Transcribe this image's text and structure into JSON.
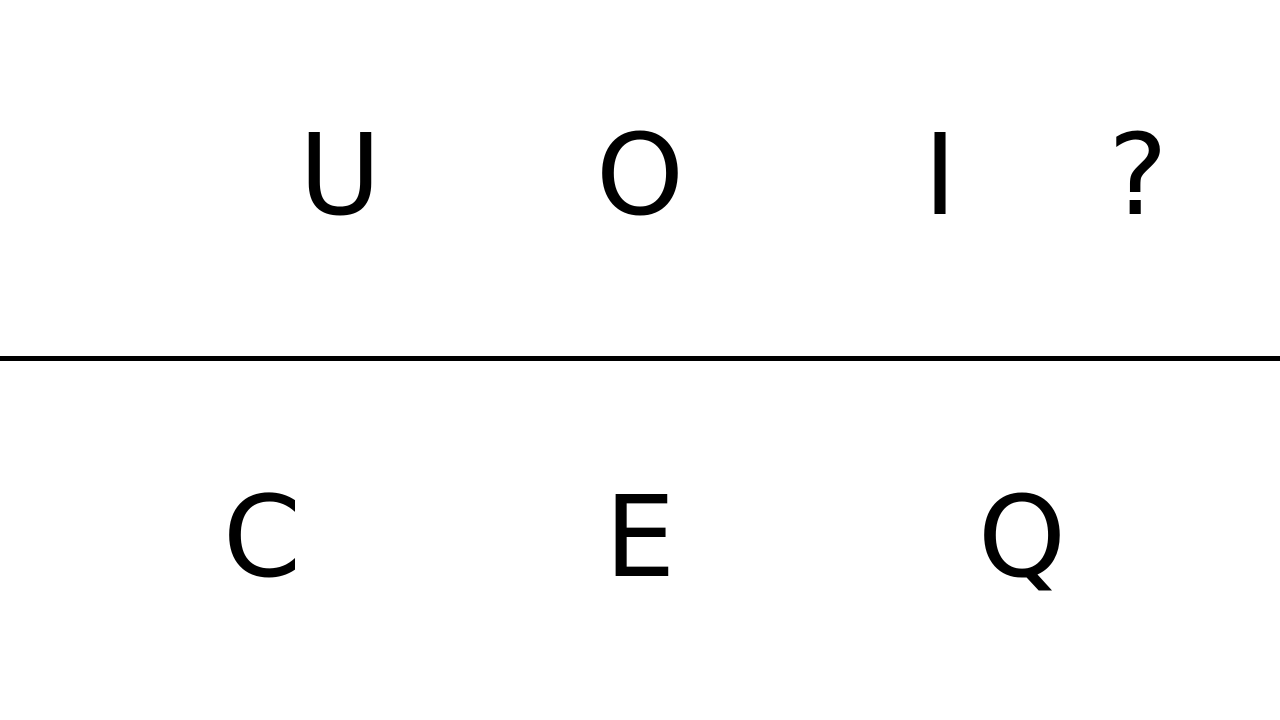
{
  "top_row": {
    "letters": [
      "U",
      "O",
      "I"
    ],
    "unknown": "?"
  },
  "bottom_row": {
    "letters": [
      "C",
      "E",
      "Q"
    ]
  }
}
